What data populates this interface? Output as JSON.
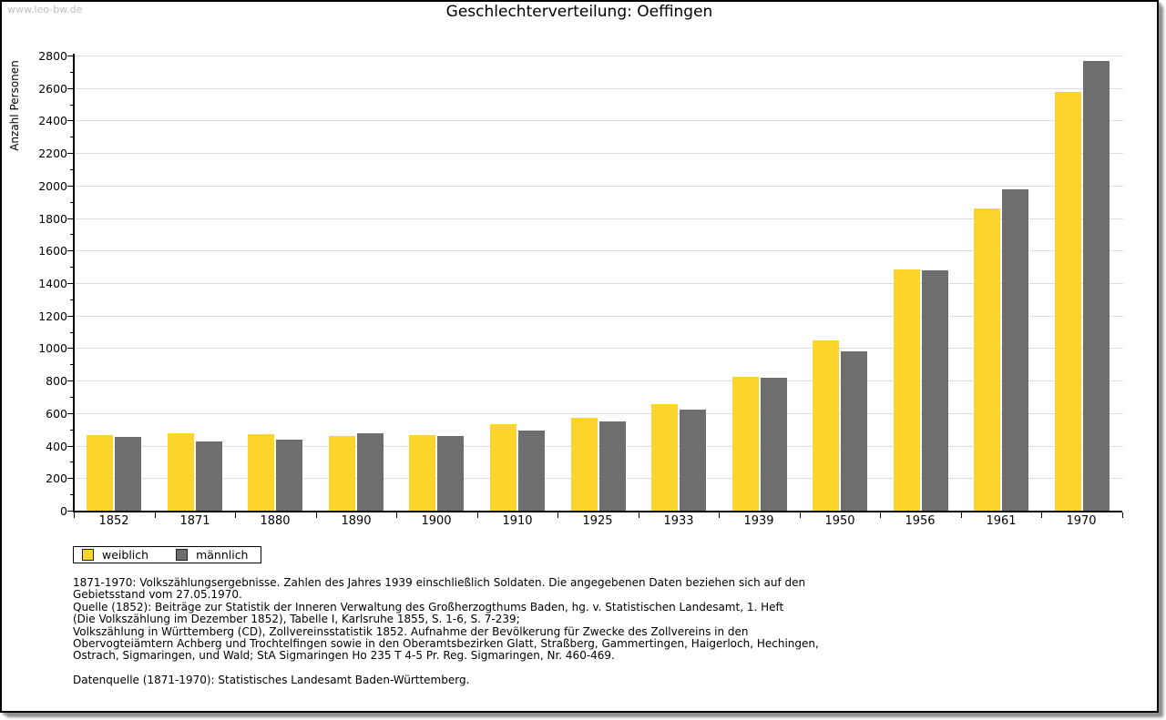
{
  "watermark": "www.leo-bw.de",
  "title": "Geschlechterverteilung: Oeffingen",
  "chart_data": {
    "type": "bar",
    "title": "Geschlechterverteilung: Oeffingen",
    "xlabel": "",
    "ylabel": "Anzahl Personen",
    "ylim": [
      0,
      2800
    ],
    "ytick_step": 200,
    "yticks": [
      0,
      200,
      400,
      600,
      800,
      1000,
      1200,
      1400,
      1600,
      1800,
      2000,
      2200,
      2400,
      2600,
      2800
    ],
    "grid": true,
    "legend_position": "bottom-left",
    "categories": [
      "1852",
      "1871",
      "1880",
      "1890",
      "1900",
      "1910",
      "1925",
      "1933",
      "1939",
      "1950",
      "1956",
      "1961",
      "1970"
    ],
    "series": [
      {
        "name": "weiblich",
        "color": "#FDD42C",
        "values": [
          465,
          475,
          470,
          460,
          465,
          530,
          570,
          655,
          825,
          1045,
          1485,
          1860,
          2575
        ]
      },
      {
        "name": "männlich",
        "color": "#6E6E6E",
        "values": [
          455,
          425,
          435,
          475,
          460,
          490,
          550,
          620,
          815,
          980,
          1480,
          1975,
          2765
        ]
      }
    ]
  },
  "footnote_lines": [
    "1871-1970: Volkszählungsergebnisse. Zahlen des Jahres 1939 einschließlich Soldaten. Die angegebenen Daten beziehen sich auf den",
    "Gebietsstand vom 27.05.1970.",
    "Quelle (1852): Beiträge zur Statistik der Inneren Verwaltung des Großherzogthums Baden, hg. v. Statistischen Landesamt, 1. Heft",
    "(Die Volkszählung im Dezember 1852), Tabelle I, Karlsruhe 1855, S. 1-6, S. 7-239;",
    "Volkszählung in Württemberg (CD), Zollvereinsstatistik 1852. Aufnahme der Bevölkerung für Zwecke des Zollvereins in den",
    "Obervogteiämtern Achberg und Trochtelfingen sowie in den Oberamtsbezirken Glatt, Straßberg, Gammertingen, Haigerloch, Hechingen,",
    "Ostrach, Sigmaringen, und Wald; StA Sigmaringen Ho 235 T 4-5 Pr. Reg. Sigmaringen, Nr. 460-469."
  ],
  "datasource": "Datenquelle (1871-1970): Statistisches Landesamt Baden-Württemberg."
}
